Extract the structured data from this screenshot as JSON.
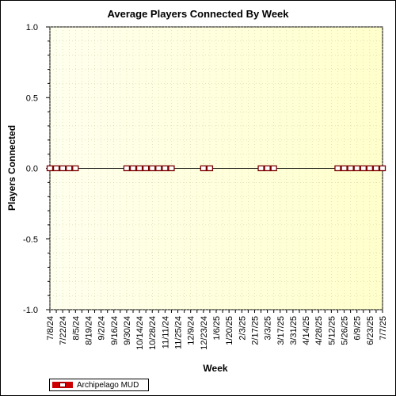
{
  "chart_data": {
    "type": "line",
    "title": "Average Players Connected By Week",
    "xlabel": "Week",
    "ylabel": "Players Connected",
    "ylim": [
      -1.0,
      1.0
    ],
    "yticks": [
      "1.0",
      "0.5",
      "0.0",
      "-0.5",
      "-1.0"
    ],
    "ytick_values": [
      1.0,
      0.5,
      0.0,
      -0.5,
      -1.0
    ],
    "x_tick_labels": [
      "7/8/24",
      "7/22/24",
      "8/5/24",
      "8/19/24",
      "9/2/24",
      "9/16/24",
      "9/30/24",
      "10/14/24",
      "10/28/24",
      "11/11/24",
      "11/25/24",
      "12/9/24",
      "12/23/24",
      "1/6/25",
      "1/20/25",
      "2/3/25",
      "2/17/25",
      "3/3/25",
      "3/17/25",
      "3/31/25",
      "4/14/25",
      "4/28/25",
      "5/12/25",
      "5/26/25",
      "6/9/25",
      "6/23/25",
      "7/7/25"
    ],
    "grid": true,
    "legend_position": "bottom-left",
    "colors": {
      "plot_background": "#ffffe6",
      "series": "#cc0000",
      "marker_border": "#7a0000"
    },
    "series": [
      {
        "name": "Archipelago MUD",
        "x": [
          "7/8/24",
          "7/15/24",
          "7/22/24",
          "7/29/24",
          "8/5/24",
          "9/30/24",
          "10/7/24",
          "10/14/24",
          "10/21/24",
          "10/28/24",
          "11/4/24",
          "11/11/24",
          "11/18/24",
          "12/23/24",
          "12/30/24",
          "2/24/25",
          "3/3/25",
          "3/10/25",
          "5/19/25",
          "5/26/25",
          "6/2/25",
          "6/9/25",
          "6/16/25",
          "6/23/25",
          "6/30/25",
          "7/7/25"
        ],
        "values": [
          0,
          0,
          0,
          0,
          0,
          0,
          0,
          0,
          0,
          0,
          0,
          0,
          0,
          0,
          0,
          0,
          0,
          0,
          0,
          0,
          0,
          0,
          0,
          0,
          0,
          0
        ]
      }
    ]
  }
}
